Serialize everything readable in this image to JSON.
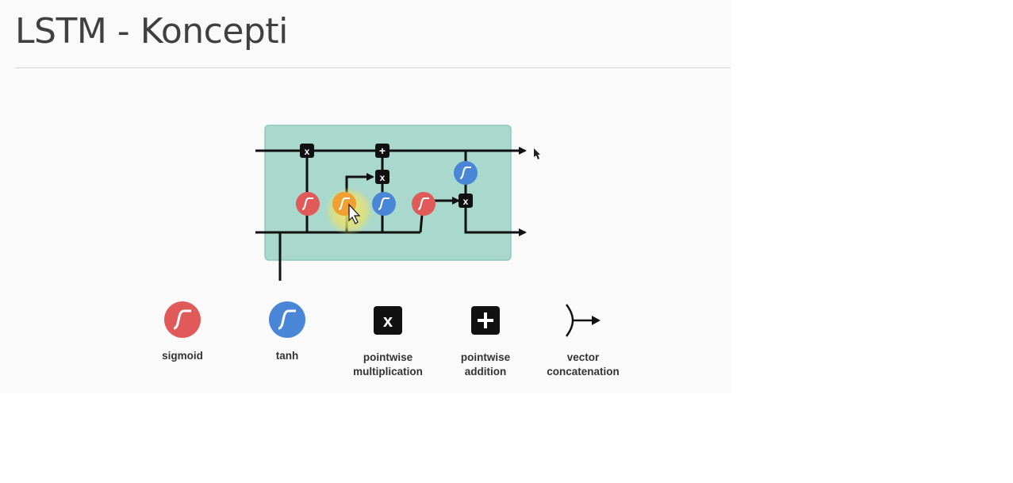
{
  "slide": {
    "title_main": "LSTM",
    "title_separator": "-",
    "title_sub": "Koncepti"
  },
  "diagram": {
    "cell_color": "#a9d8cc",
    "gate_colors": {
      "sigmoid": "#e05a5a",
      "tanh": "#4a86d8",
      "highlighted": "#f0a030",
      "highlight_glow": "#e8e060"
    },
    "ops": [
      "pointwise-multiplication",
      "pointwise-addition"
    ],
    "op_symbols": {
      "multiply": "x",
      "add": "+"
    }
  },
  "legend": {
    "items": [
      {
        "id": "sigmoid",
        "icon": "sigmoid-circle-icon",
        "lines": [
          "sigmoid"
        ]
      },
      {
        "id": "tanh",
        "icon": "tanh-circle-icon",
        "lines": [
          "tanh"
        ]
      },
      {
        "id": "pointwise-multiplication",
        "icon": "multiply-square-icon",
        "lines": [
          "pointwise",
          "multiplication"
        ]
      },
      {
        "id": "pointwise-addition",
        "icon": "add-square-icon",
        "lines": [
          "pointwise",
          "addition"
        ]
      },
      {
        "id": "vector-concatenation",
        "icon": "concatenation-arrow-icon",
        "lines": [
          "vector",
          "concatenation"
        ]
      }
    ]
  }
}
